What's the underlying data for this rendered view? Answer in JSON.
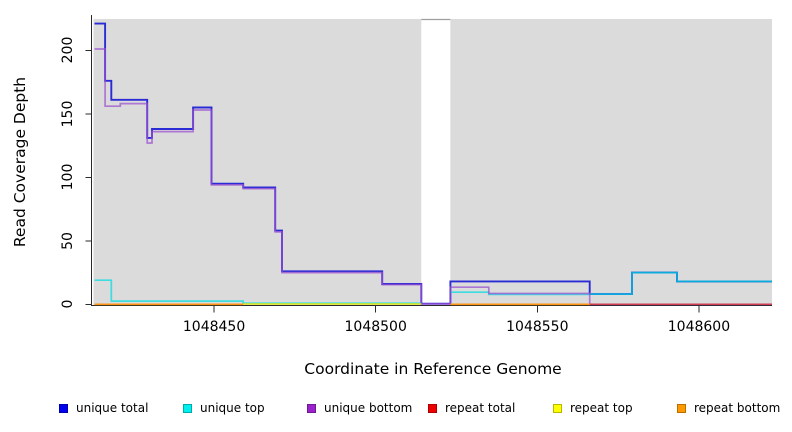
{
  "figure": {
    "background": "#ffffff"
  },
  "axes": {
    "x_title": "Coordinate in Reference Genome",
    "y_title": "Read Coverage Depth"
  },
  "legend": {
    "items": [
      {
        "label": "unique total",
        "color": "#0000EE"
      },
      {
        "label": "unique top",
        "color": "#00EEEE"
      },
      {
        "label": "unique bottom",
        "color": "#9922CC"
      },
      {
        "label": "repeat total",
        "color": "#EE0000"
      },
      {
        "label": "repeat top",
        "color": "#FFFF00"
      },
      {
        "label": "repeat bottom",
        "color": "#FF9900"
      }
    ]
  },
  "chart_data": {
    "type": "line",
    "subtype": "step",
    "title": "",
    "xlabel": "Coordinate in Reference Genome",
    "ylabel": "Read Coverage Depth",
    "x_domain": [
      1048412.7,
      1048622.6
    ],
    "y_domain": [
      0,
      225
    ],
    "x_ticks": [
      "1048450",
      "1048500",
      "1048550",
      "1048600"
    ],
    "y_ticks": [
      "200",
      "150",
      "100",
      "50",
      "0"
    ],
    "grid": false,
    "legend_position": "bottom",
    "panel_bg": "#DBDBDB",
    "axis_color": "#2A2A2A",
    "no_data_gap": {
      "x_start": 1048514.1,
      "x_end": 1048523.1,
      "fill": "#FFFFFF",
      "top_border": "#9E9E9E"
    },
    "series": [
      {
        "name": "unique total",
        "color": "#2B2BD5",
        "opacity": 1,
        "width": 1.9,
        "segments": [
          {
            "points": [
              [
                1048413.0,
                221
              ],
              [
                1048416.3,
                176
              ],
              [
                1048418.2,
                161
              ],
              [
                1048429.3,
                131
              ],
              [
                1048430.8,
                138
              ],
              [
                1048443.5,
                155
              ],
              [
                1048449.2,
                95
              ],
              [
                1048459,
                92
              ],
              [
                1048468.9,
                58
              ],
              [
                1048471,
                26
              ],
              [
                1048502,
                16
              ],
              [
                1048514.1,
                0.5
              ],
              [
                1048523.1,
                18
              ],
              [
                1048566.2,
                8
              ],
              [
                1048579.3,
                25
              ],
              [
                1048593.2,
                18
              ],
              [
                1048622.6,
                18
              ]
            ]
          }
        ]
      },
      {
        "name": "unique top",
        "color": "#00DCE0",
        "opacity": 0.72,
        "width": 1.7,
        "segments": [
          {
            "points": [
              [
                1048413.0,
                19
              ],
              [
                1048418.2,
                2.5
              ],
              [
                1048459,
                0.9
              ],
              [
                1048514.1,
                0.9
              ]
            ]
          },
          {
            "points": [
              [
                1048523.1,
                9.5
              ],
              [
                1048535,
                7.8
              ],
              [
                1048566.2,
                8
              ],
              [
                1048579.3,
                25
              ],
              [
                1048593.2,
                18
              ],
              [
                1048622.6,
                18
              ]
            ]
          }
        ]
      },
      {
        "name": "unique bottom",
        "color": "#9A4FD0",
        "opacity": 0.72,
        "width": 1.7,
        "segments": [
          {
            "points": [
              [
                1048413.0,
                201
              ],
              [
                1048416.3,
                156
              ],
              [
                1048421,
                158
              ],
              [
                1048429.3,
                127
              ],
              [
                1048430.8,
                136
              ],
              [
                1048443.5,
                153
              ],
              [
                1048449.2,
                94
              ],
              [
                1048459,
                91
              ],
              [
                1048468.9,
                57
              ],
              [
                1048471,
                25
              ],
              [
                1048502,
                15.5
              ],
              [
                1048514.1,
                0.3
              ],
              [
                1048523.1,
                13.5
              ],
              [
                1048535,
                8.5
              ],
              [
                1048566.2,
                0
              ],
              [
                1048622.6,
                0
              ]
            ]
          }
        ]
      },
      {
        "name": "repeat total",
        "color": "#D23B55",
        "opacity": 1,
        "width": 1.5,
        "segments": [
          {
            "points": [
              [
                1048523.1,
                0
              ],
              [
                1048622.6,
                0
              ]
            ]
          }
        ]
      },
      {
        "name": "repeat top",
        "color": "#E8E800",
        "opacity": 0.9,
        "width": 1.5,
        "segments": [
          {
            "points": [
              [
                1048459,
                0.2
              ],
              [
                1048514.1,
                0.2
              ]
            ]
          }
        ]
      },
      {
        "name": "repeat bottom",
        "color": "#FF9412",
        "opacity": 1,
        "width": 1.7,
        "segments": [
          {
            "points": [
              [
                1048413.0,
                0
              ],
              [
                1048459,
                0
              ]
            ]
          },
          {
            "points": [
              [
                1048523.1,
                0
              ],
              [
                1048566.2,
                0
              ]
            ]
          }
        ]
      }
    ]
  }
}
